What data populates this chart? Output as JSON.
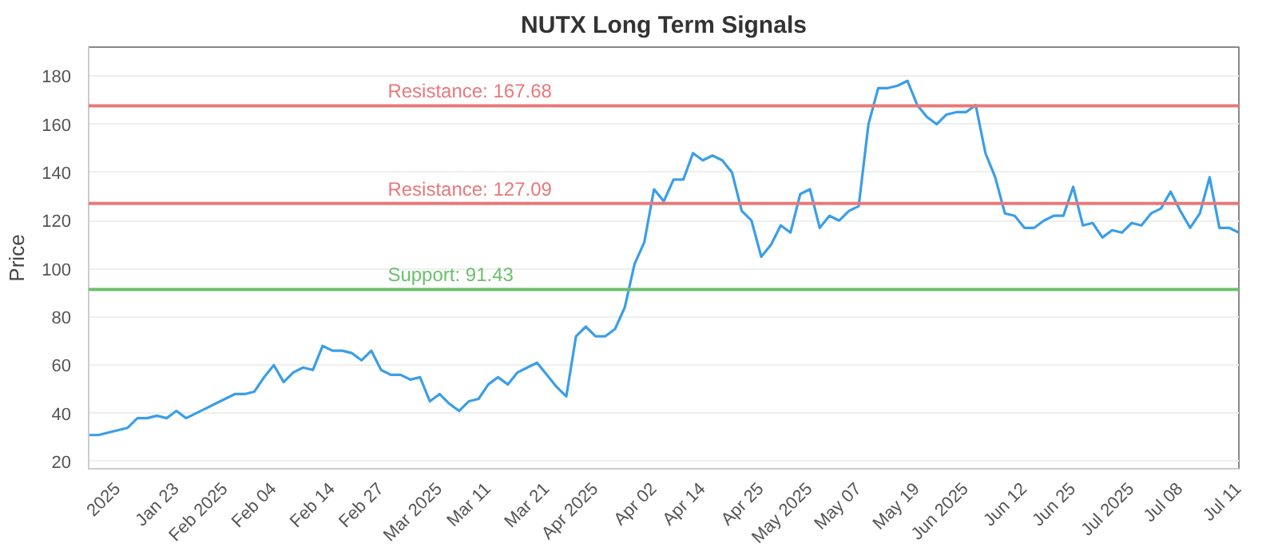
{
  "chart_data": {
    "type": "line",
    "title": "NUTX Long Term Signals",
    "ylabel": "Price",
    "categories": [
      null,
      null,
      null,
      "2025",
      null,
      null,
      null,
      null,
      null,
      "Jan 23",
      null,
      null,
      null,
      null,
      "Feb 2025",
      null,
      null,
      null,
      null,
      "Feb 04",
      null,
      null,
      null,
      null,
      null,
      "Feb 14",
      null,
      null,
      null,
      null,
      "Feb 27",
      null,
      null,
      null,
      null,
      null,
      "Mar 2025",
      null,
      null,
      null,
      null,
      "Mar 11",
      null,
      null,
      null,
      null,
      null,
      "Mar 21",
      null,
      null,
      null,
      null,
      "Apr 2025",
      null,
      null,
      null,
      null,
      null,
      "Apr 02",
      null,
      null,
      null,
      null,
      "Apr 14",
      null,
      null,
      null,
      null,
      null,
      "Apr 25",
      null,
      null,
      null,
      null,
      "May 2025",
      null,
      null,
      null,
      null,
      "May 07",
      null,
      null,
      null,
      null,
      null,
      "May 19",
      null,
      null,
      null,
      null,
      "Jun 2025",
      null,
      null,
      null,
      null,
      null,
      "Jun 12",
      null,
      null,
      null,
      null,
      "Jun 25",
      null,
      null,
      null,
      null,
      null,
      "Jul 2025",
      null,
      null,
      null,
      null,
      "Jul 08",
      null,
      null,
      null,
      null,
      null,
      "Jul 11"
    ],
    "series": [
      {
        "color": "#3a9ee8",
        "values": [
          31,
          31,
          32,
          33,
          34,
          38,
          38,
          39,
          38,
          41,
          38,
          40,
          42,
          44,
          46,
          48,
          48,
          49,
          55,
          60,
          53,
          57,
          59,
          58,
          68,
          66,
          66,
          65,
          62,
          66,
          58,
          56,
          56,
          54,
          55,
          45,
          48,
          44,
          41,
          45,
          46,
          52,
          55,
          52,
          57,
          59,
          61,
          56,
          51,
          47,
          72,
          76,
          72,
          72,
          75,
          84,
          102,
          111,
          133,
          128,
          137,
          137,
          148,
          145,
          147,
          145,
          140,
          124,
          120,
          105,
          110,
          118,
          115,
          131,
          133,
          117,
          122,
          120,
          124,
          126,
          160,
          175,
          175,
          176,
          178,
          168,
          163,
          160,
          164,
          165,
          165,
          168,
          148,
          138,
          123,
          122,
          117,
          117,
          120,
          122,
          122,
          134,
          118,
          119,
          113,
          116,
          115,
          119,
          118,
          123,
          125,
          132,
          124,
          117,
          123,
          138,
          117,
          117,
          115
        ]
      }
    ],
    "ylim": [
      17,
      192
    ],
    "yticks": [
      20,
      40,
      60,
      80,
      100,
      120,
      140,
      160,
      180
    ],
    "grid": "y",
    "marker": "none",
    "line_style": "solid",
    "ref_lines": [
      {
        "axis": "y",
        "value": 167.68,
        "label": "Resistance: 167.68",
        "color": "#e8787a"
      },
      {
        "axis": "y",
        "value": 127.09,
        "label": "Resistance: 127.09",
        "color": "#e8787a"
      },
      {
        "axis": "y",
        "value": 91.43,
        "label": "Support: 91.43",
        "color": "#6cbf6c"
      }
    ]
  }
}
